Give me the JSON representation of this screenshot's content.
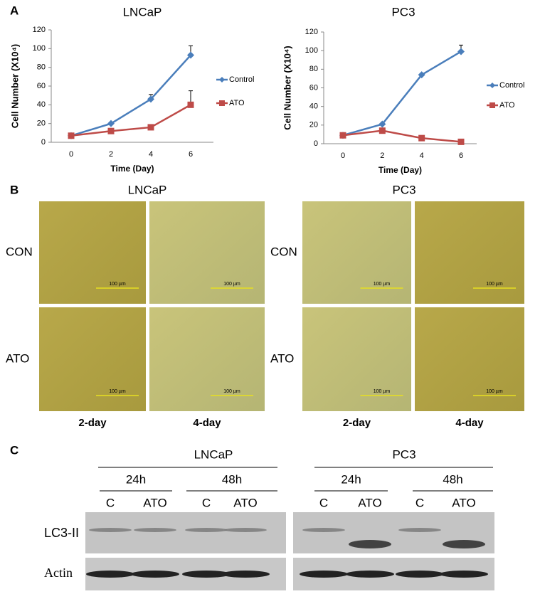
{
  "chart_data": [
    {
      "type": "line",
      "panel": "A",
      "title": "LNCaP",
      "x_label": "Time (Day)",
      "y_label": "Cell Number (X10⁴)",
      "x": [
        0,
        2,
        4,
        6
      ],
      "xlim": [
        0,
        6
      ],
      "xticks": [
        0,
        2,
        4,
        6
      ],
      "ylim": [
        0,
        120
      ],
      "yticks": [
        0,
        20,
        40,
        60,
        80,
        100,
        120
      ],
      "series": [
        {
          "name": "Control",
          "color": "#4a7ebb",
          "marker": "diamond",
          "values": [
            7,
            20,
            46,
            93
          ],
          "errors": [
            null,
            null,
            5,
            10
          ]
        },
        {
          "name": "ATO",
          "color": "#be4b48",
          "marker": "square",
          "values": [
            7,
            12,
            16,
            40
          ],
          "errors": [
            null,
            null,
            null,
            15
          ]
        }
      ]
    },
    {
      "type": "line",
      "title": "PC3",
      "x_label": "Time (Day)",
      "y_label": "Cell Number (X10⁴)",
      "x": [
        0,
        2,
        4,
        6
      ],
      "xlim": [
        0,
        6
      ],
      "xticks": [
        0,
        2,
        4,
        6
      ],
      "ylim": [
        0,
        120
      ],
      "yticks": [
        0,
        20,
        40,
        60,
        80,
        100,
        120
      ],
      "series": [
        {
          "name": "Control",
          "color": "#4a7ebb",
          "marker": "diamond",
          "values": [
            9,
            21,
            74,
            99
          ],
          "errors": [
            null,
            null,
            null,
            7
          ]
        },
        {
          "name": "ATO",
          "color": "#be4b48",
          "marker": "square",
          "values": [
            9,
            14,
            6,
            2
          ],
          "errors": [
            null,
            null,
            null,
            null
          ]
        }
      ]
    }
  ],
  "panel_b": {
    "label": "B",
    "groups": [
      "LNCaP",
      "PC3"
    ],
    "rows": [
      "CON",
      "ATO"
    ],
    "columns": [
      "2-day",
      "4-day"
    ],
    "scale_bar": "100 µm"
  },
  "panel_c": {
    "label": "C",
    "groups": [
      "LNCaP",
      "PC3"
    ],
    "times": [
      "24h",
      "48h"
    ],
    "lanes": [
      "C",
      "ATO"
    ],
    "proteins": [
      "LC3-II",
      "Actin"
    ]
  }
}
